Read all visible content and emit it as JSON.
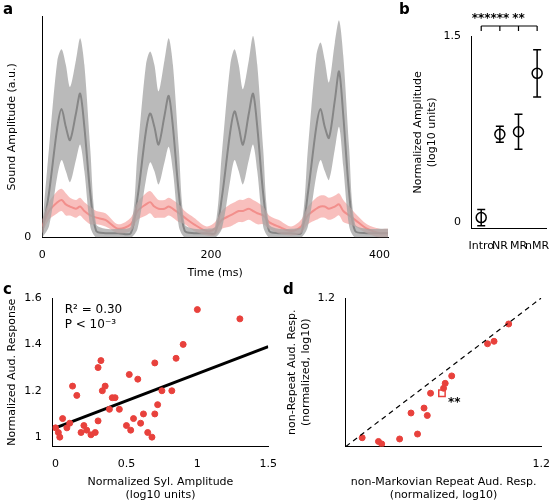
{
  "chart_data": [
    {
      "title": "a",
      "type": "line",
      "x_label": "Time (ms)",
      "y_label": "Sound Amplitude (a.u.)",
      "x": [
        0,
        8,
        18,
        23,
        28,
        33,
        40,
        45,
        50,
        57,
        64,
        75,
        90,
        105,
        113,
        123,
        128,
        133,
        138,
        145,
        150,
        155,
        162,
        169,
        180,
        195,
        205,
        213,
        223,
        228,
        233,
        238,
        245,
        250,
        255,
        262,
        269,
        280,
        295,
        307,
        315,
        325,
        330,
        335,
        340,
        347,
        352,
        357,
        364,
        371,
        385,
        400,
        410
      ],
      "series": [
        {
          "color": "#333333",
          "values": [
            0.02,
            0.2,
            0.5,
            0.58,
            0.5,
            0.44,
            0.56,
            0.65,
            0.5,
            0.2,
            0.03,
            0.02,
            0.02,
            0.02,
            0.18,
            0.48,
            0.56,
            0.5,
            0.42,
            0.55,
            0.64,
            0.5,
            0.2,
            0.03,
            0.02,
            0.02,
            0.02,
            0.18,
            0.48,
            0.57,
            0.5,
            0.42,
            0.56,
            0.65,
            0.5,
            0.2,
            0.03,
            0.02,
            0.02,
            0.02,
            0.2,
            0.5,
            0.58,
            0.5,
            0.45,
            0.62,
            0.75,
            0.55,
            0.2,
            0.03,
            0.02,
            0.02,
            0.02
          ],
          "upper": [
            0.05,
            0.4,
            0.8,
            0.85,
            0.78,
            0.68,
            0.8,
            0.9,
            0.78,
            0.4,
            0.06,
            0.04,
            0.04,
            0.05,
            0.38,
            0.78,
            0.84,
            0.78,
            0.66,
            0.8,
            0.9,
            0.78,
            0.4,
            0.06,
            0.04,
            0.04,
            0.05,
            0.38,
            0.78,
            0.85,
            0.78,
            0.67,
            0.8,
            0.91,
            0.78,
            0.4,
            0.06,
            0.04,
            0.04,
            0.05,
            0.4,
            0.82,
            0.88,
            0.8,
            0.7,
            0.88,
            0.98,
            0.82,
            0.4,
            0.06,
            0.04,
            0.04,
            0.04
          ],
          "lower": [
            0,
            0.05,
            0.28,
            0.35,
            0.3,
            0.25,
            0.35,
            0.42,
            0.3,
            0.05,
            0,
            0,
            0,
            0,
            0.04,
            0.26,
            0.34,
            0.3,
            0.24,
            0.34,
            0.41,
            0.3,
            0.05,
            0,
            0,
            0,
            0,
            0.04,
            0.26,
            0.35,
            0.3,
            0.24,
            0.35,
            0.42,
            0.3,
            0.05,
            0,
            0,
            0,
            0,
            0.05,
            0.28,
            0.35,
            0.3,
            0.26,
            0.4,
            0.5,
            0.32,
            0.05,
            0,
            0,
            0,
            0
          ]
        },
        {
          "color": "#e8413c",
          "values": [
            0.05,
            0.12,
            0.16,
            0.17,
            0.15,
            0.14,
            0.13,
            0.14,
            0.12,
            0.1,
            0.09,
            0.08,
            0.04,
            0.06,
            0.12,
            0.15,
            0.16,
            0.14,
            0.13,
            0.13,
            0.14,
            0.13,
            0.11,
            0.09,
            0.06,
            0.03,
            0.04,
            0.08,
            0.1,
            0.11,
            0.12,
            0.12,
            0.13,
            0.12,
            0.11,
            0.1,
            0.07,
            0.05,
            0.03,
            0.05,
            0.1,
            0.13,
            0.14,
            0.14,
            0.13,
            0.14,
            0.15,
            0.12,
            0.1,
            0.08,
            0.04,
            0.02,
            0.02
          ],
          "upper": [
            0.08,
            0.16,
            0.21,
            0.22,
            0.2,
            0.18,
            0.17,
            0.18,
            0.16,
            0.14,
            0.12,
            0.11,
            0.06,
            0.09,
            0.16,
            0.2,
            0.21,
            0.19,
            0.17,
            0.17,
            0.18,
            0.17,
            0.15,
            0.12,
            0.09,
            0.05,
            0.07,
            0.12,
            0.15,
            0.16,
            0.17,
            0.17,
            0.18,
            0.17,
            0.16,
            0.14,
            0.1,
            0.08,
            0.05,
            0.08,
            0.14,
            0.18,
            0.19,
            0.19,
            0.18,
            0.19,
            0.2,
            0.17,
            0.14,
            0.11,
            0.06,
            0.04,
            0.04
          ],
          "lower": [
            0.02,
            0.08,
            0.11,
            0.12,
            0.1,
            0.1,
            0.09,
            0.1,
            0.08,
            0.06,
            0.06,
            0.05,
            0.02,
            0.03,
            0.08,
            0.1,
            0.11,
            0.09,
            0.09,
            0.09,
            0.1,
            0.09,
            0.07,
            0.06,
            0.03,
            0.01,
            0.01,
            0.04,
            0.05,
            0.06,
            0.07,
            0.07,
            0.08,
            0.07,
            0.06,
            0.06,
            0.04,
            0.02,
            0.01,
            0.02,
            0.06,
            0.08,
            0.09,
            0.09,
            0.08,
            0.09,
            0.1,
            0.07,
            0.06,
            0.05,
            0.02,
            0,
            0
          ]
        }
      ],
      "xlim": [
        0,
        410
      ],
      "xticks": [
        0,
        200,
        400
      ],
      "ylim": [
        0,
        1
      ],
      "yticks": [
        0
      ],
      "grid": false
    },
    {
      "title": "b",
      "type": "scatter",
      "y_label": [
        "Normalized Amplitude",
        "(log10 units)"
      ],
      "categories": [
        "Intro",
        "NR",
        "MR",
        "nMR"
      ],
      "values": [
        0.04,
        0.71,
        0.73,
        1.2
      ],
      "errors": [
        0.065,
        0.065,
        0.14,
        0.19
      ],
      "color": "#000000",
      "marker": "open_circle",
      "ylim": [
        -0.05,
        1.5
      ],
      "yticks": [
        0,
        1.5
      ],
      "grid": false,
      "annotations": [
        {
          "text": "***",
          "x": "Intro"
        },
        {
          "text": "***",
          "x": "NR"
        },
        {
          "text": "**",
          "x": "MR"
        }
      ]
    },
    {
      "title": "c",
      "type": "scatter",
      "x_label": [
        "Normalized Syl. Amplitude",
        "(log10 units)"
      ],
      "y_label": "Normalized Aud. Response",
      "series": [
        {
          "type": "scatter",
          "color": "#e8413c",
          "marker": "circle",
          "x": [
            0.02,
            0.03,
            0.05,
            0.08,
            0.1,
            0.12,
            0.15,
            0.18,
            0.2,
            0.22,
            0.25,
            0.28,
            0.3,
            0.3,
            0.32,
            0.33,
            0.35,
            0.38,
            0.4,
            0.42,
            0.45,
            0.5,
            0.52,
            0.53,
            0.55,
            0.58,
            0.6,
            0.62,
            0.65,
            0.68,
            0.7,
            0.7,
            0.72,
            0.75,
            0.82,
            0.85,
            0.9,
            1.0,
            1.3,
            0.0
          ],
          "values": [
            1.02,
            1.0,
            1.08,
            1.04,
            1.06,
            1.22,
            1.18,
            1.02,
            1.05,
            1.03,
            1.01,
            1.02,
            1.3,
            1.07,
            1.33,
            1.2,
            1.22,
            1.12,
            1.17,
            1.17,
            1.12,
            1.05,
            1.27,
            1.03,
            1.08,
            1.25,
            1.06,
            1.1,
            1.02,
            1.0,
            1.32,
            1.1,
            1.14,
            1.2,
            1.2,
            1.34,
            1.4,
            1.55,
            1.51,
            1.04
          ]
        },
        {
          "type": "line",
          "color": "#000000",
          "x": [
            0,
            1.5
          ],
          "values": [
            1.04,
            1.39
          ]
        }
      ],
      "xlim": [
        -0.02,
        1.5
      ],
      "xticks": [
        0,
        0.5,
        1,
        1.5
      ],
      "ylim": [
        0.96,
        1.6
      ],
      "yticks": [
        1,
        1.2,
        1.4,
        1.6
      ],
      "grid": false,
      "annotations": [
        {
          "text": "R² = 0.30"
        },
        {
          "text": "P < 10⁻³"
        }
      ]
    },
    {
      "title": "d",
      "type": "scatter",
      "x_label": [
        "non-Markovian Repeat Aud. Resp.",
        "(normalized, log10)"
      ],
      "y_label": [
        "non-Repeat Aud. Resp.",
        "(normalized, log10)"
      ],
      "series": [
        {
          "type": "line",
          "color": "#000000",
          "line_style": "dashed",
          "x": [
            0,
            1.2
          ],
          "values": [
            0,
            1.2
          ]
        },
        {
          "type": "scatter",
          "color": "#e8413c",
          "marker": "circle",
          "x": [
            0.1,
            0.2,
            0.22,
            0.33,
            0.4,
            0.44,
            0.48,
            0.5,
            0.52,
            0.6,
            0.61,
            0.65,
            0.87,
            0.91,
            1.0
          ],
          "values": [
            0.07,
            0.04,
            0.02,
            0.06,
            0.27,
            0.1,
            0.31,
            0.25,
            0.43,
            0.47,
            0.51,
            0.57,
            0.83,
            0.85,
            0.99
          ]
        },
        {
          "type": "scatter",
          "color": "#e8413c",
          "marker": "open_square",
          "x": [
            0.59
          ],
          "values": [
            0.43
          ]
        }
      ],
      "xlim": [
        0,
        1.2
      ],
      "xticks": [
        1.2
      ],
      "ylim": [
        0,
        1.2
      ],
      "yticks": [
        1.2
      ],
      "grid": false,
      "annotations": [
        {
          "text": "**",
          "x": 0.59,
          "y": 0.43
        }
      ]
    }
  ]
}
